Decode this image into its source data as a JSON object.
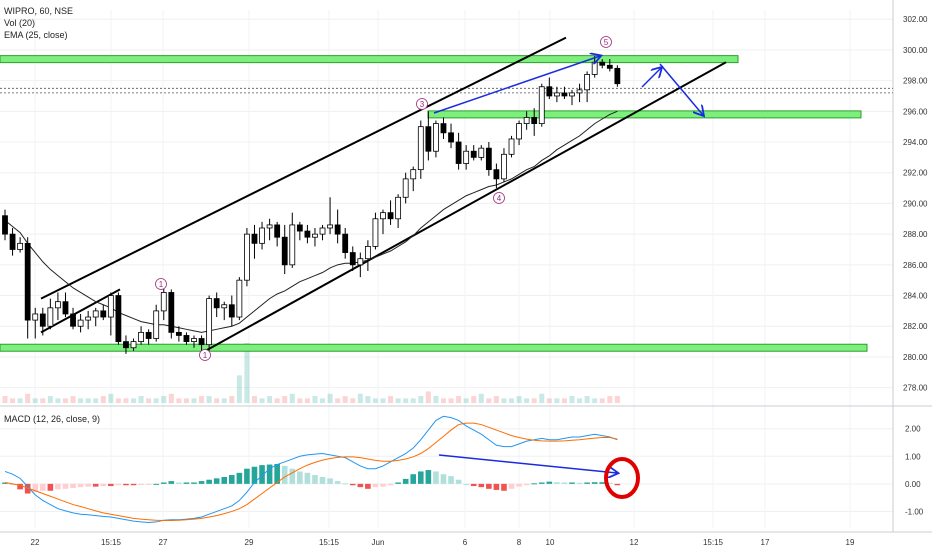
{
  "chart_data": [
    {
      "type": "candlestick",
      "symbol_label": "WIPRO, 60, NSE",
      "volume_label": "Vol (20)",
      "ema_label": "EMA (25, close)",
      "y_ticks": [
        "302.00",
        "300.00",
        "298.00",
        "296.00",
        "294.00",
        "292.00",
        "290.00",
        "288.00",
        "286.00",
        "284.00",
        "282.00",
        "280.00",
        "278.00"
      ],
      "ylim": [
        277,
        302.6
      ],
      "dashed_price_levels": [
        297.5,
        297.2
      ],
      "candles": [
        [
          289.2,
          289.6,
          287.6,
          288.0
        ],
        [
          288.0,
          288.4,
          286.6,
          287.0
        ],
        [
          287.0,
          287.8,
          286.8,
          287.4
        ],
        [
          287.4,
          287.8,
          281.2,
          282.4
        ],
        [
          282.4,
          283.2,
          281.2,
          282.8
        ],
        [
          282.8,
          283.2,
          281.4,
          282.0
        ],
        [
          282.0,
          283.8,
          281.8,
          283.2
        ],
        [
          283.2,
          284.2,
          282.4,
          283.6
        ],
        [
          283.6,
          284.2,
          282.6,
          282.8
        ],
        [
          282.8,
          283.2,
          281.8,
          282.0
        ],
        [
          282.0,
          282.8,
          281.6,
          282.4
        ],
        [
          282.4,
          283.0,
          281.8,
          282.6
        ],
        [
          282.6,
          283.2,
          282.0,
          283.0
        ],
        [
          283.0,
          283.4,
          282.4,
          282.6
        ],
        [
          282.6,
          284.2,
          281.4,
          284.0
        ],
        [
          284.0,
          284.2,
          280.8,
          281.0
        ],
        [
          281.0,
          281.4,
          280.2,
          280.6
        ],
        [
          280.6,
          281.2,
          280.4,
          281.0
        ],
        [
          281.0,
          282.0,
          280.8,
          281.6
        ],
        [
          281.6,
          281.8,
          280.8,
          281.2
        ],
        [
          281.2,
          283.4,
          281.0,
          283.0
        ],
        [
          283.0,
          284.6,
          282.4,
          284.2
        ],
        [
          284.2,
          284.4,
          281.2,
          281.6
        ],
        [
          281.6,
          282.0,
          281.0,
          281.4
        ],
        [
          281.4,
          281.6,
          280.8,
          281.0
        ],
        [
          281.0,
          281.4,
          280.6,
          281.2
        ],
        [
          281.2,
          281.4,
          280.4,
          280.8
        ],
        [
          280.8,
          284.0,
          280.4,
          283.8
        ],
        [
          283.8,
          284.2,
          282.6,
          283.2
        ],
        [
          283.2,
          283.6,
          282.4,
          283.4
        ],
        [
          283.4,
          284.0,
          282.0,
          282.6
        ],
        [
          282.6,
          285.2,
          282.4,
          285.0
        ],
        [
          285.0,
          288.4,
          284.6,
          288.0
        ],
        [
          288.0,
          288.6,
          286.4,
          287.4
        ],
        [
          287.4,
          288.8,
          287.0,
          288.4
        ],
        [
          288.4,
          289.0,
          287.6,
          288.6
        ],
        [
          288.6,
          288.8,
          287.2,
          287.8
        ],
        [
          287.8,
          288.6,
          285.4,
          286.0
        ],
        [
          286.0,
          289.4,
          285.8,
          288.6
        ],
        [
          288.6,
          288.8,
          287.6,
          288.2
        ],
        [
          288.2,
          288.6,
          287.4,
          287.8
        ],
        [
          287.8,
          288.4,
          287.2,
          288.0
        ],
        [
          288.0,
          288.6,
          287.6,
          288.4
        ],
        [
          288.4,
          290.4,
          288.0,
          288.6
        ],
        [
          288.6,
          289.6,
          287.4,
          288.0
        ],
        [
          288.0,
          288.4,
          286.4,
          286.8
        ],
        [
          286.8,
          287.2,
          285.6,
          286.0
        ],
        [
          286.0,
          286.8,
          285.2,
          286.4
        ],
        [
          286.4,
          287.6,
          285.6,
          287.2
        ],
        [
          287.2,
          289.4,
          287.0,
          289.0
        ],
        [
          289.0,
          289.6,
          288.0,
          289.4
        ],
        [
          289.4,
          290.2,
          288.6,
          289.0
        ],
        [
          289.0,
          290.6,
          288.4,
          290.4
        ],
        [
          290.4,
          292.0,
          290.0,
          291.6
        ],
        [
          291.6,
          292.4,
          290.8,
          292.2
        ],
        [
          292.2,
          295.4,
          291.6,
          295.0
        ],
        [
          295.0,
          296.0,
          292.8,
          293.4
        ],
        [
          293.4,
          295.4,
          293.0,
          295.2
        ],
        [
          295.2,
          295.6,
          294.2,
          294.6
        ],
        [
          294.6,
          295.2,
          293.6,
          294.0
        ],
        [
          294.0,
          294.6,
          292.2,
          292.6
        ],
        [
          292.6,
          293.8,
          292.2,
          293.4
        ],
        [
          293.4,
          293.8,
          292.8,
          293.0
        ],
        [
          293.0,
          293.8,
          292.8,
          293.6
        ],
        [
          293.6,
          294.0,
          291.8,
          292.2
        ],
        [
          292.2,
          292.6,
          291.0,
          291.6
        ],
        [
          291.6,
          293.6,
          291.4,
          293.2
        ],
        [
          293.2,
          294.4,
          293.0,
          294.2
        ],
        [
          294.2,
          295.4,
          293.8,
          295.2
        ],
        [
          295.2,
          296.0,
          294.8,
          295.6
        ],
        [
          295.6,
          296.2,
          294.4,
          295.2
        ],
        [
          295.2,
          297.8,
          295.0,
          297.6
        ],
        [
          297.6,
          298.2,
          296.8,
          297.0
        ],
        [
          297.0,
          297.6,
          296.6,
          297.2
        ],
        [
          297.2,
          297.6,
          296.8,
          297.0
        ],
        [
          297.0,
          297.4,
          296.4,
          297.2
        ],
        [
          297.2,
          297.8,
          296.6,
          297.4
        ],
        [
          297.4,
          298.6,
          296.6,
          298.4
        ],
        [
          298.4,
          299.6,
          298.2,
          299.2
        ],
        [
          299.2,
          299.4,
          298.8,
          299.0
        ],
        [
          299.0,
          299.4,
          298.6,
          298.8
        ],
        [
          298.8,
          299.0,
          297.6,
          297.8
        ]
      ],
      "ema_values": [
        288.9,
        288.5,
        288.1,
        287.4,
        286.8,
        286.2,
        285.7,
        285.3,
        284.9,
        284.5,
        284.2,
        283.9,
        283.6,
        283.4,
        283.2,
        282.9,
        282.7,
        282.5,
        282.3,
        282.2,
        282.1,
        282.1,
        282.0,
        281.9,
        281.8,
        281.7,
        281.6,
        281.7,
        281.8,
        281.9,
        282.0,
        282.2,
        282.6,
        283.0,
        283.4,
        283.8,
        284.1,
        284.3,
        284.6,
        284.9,
        285.1,
        285.3,
        285.5,
        285.8,
        286.0,
        286.1,
        286.1,
        286.2,
        286.3,
        286.5,
        286.7,
        286.9,
        287.2,
        287.5,
        287.9,
        288.4,
        288.8,
        289.2,
        289.6,
        289.9,
        290.2,
        290.5,
        290.7,
        290.9,
        291.1,
        291.2,
        291.4,
        291.6,
        291.9,
        292.2,
        292.4,
        292.8,
        293.1,
        293.5,
        293.8,
        294.1,
        294.4,
        294.8,
        295.2,
        295.5,
        295.8,
        296.0
      ],
      "volume_values": [
        3,
        2,
        2,
        4,
        2,
        2,
        3,
        2,
        2,
        3,
        2,
        2,
        2,
        3,
        4,
        2,
        2,
        2,
        3,
        2,
        2,
        3,
        4,
        2,
        2,
        2,
        3,
        3,
        2,
        2,
        3,
        12,
        26,
        3,
        2,
        3,
        2,
        3,
        4,
        2,
        2,
        3,
        2,
        4,
        2,
        3,
        2,
        4,
        3,
        2,
        2,
        3,
        2,
        2,
        2,
        3,
        5,
        3,
        2,
        2,
        3,
        2,
        3,
        4,
        2,
        3,
        2,
        2,
        3,
        2,
        2,
        4,
        2,
        2,
        2,
        3,
        2,
        3,
        2,
        2,
        3,
        3
      ],
      "support_resistance_zones": [
        299.4,
        295.8,
        280.6
      ],
      "channel_upper": [
        [
          283.8,
          41
        ],
        [
          300.8,
          566
        ]
      ],
      "channel_lower": [
        [
          280.2,
          200
        ],
        [
          299.2,
          726
        ]
      ],
      "wave_labels": [
        "1",
        "1",
        "3",
        "4",
        "5"
      ],
      "x_tick_labels": [
        "22",
        "15:15",
        "27",
        "29",
        "15:15",
        "Jun",
        "6",
        "8",
        "10",
        "12",
        "15:15",
        "17",
        "19"
      ]
    },
    {
      "type": "line",
      "title": "MACD (12, 26, close, 9)",
      "y_ticks": [
        "2.00",
        "1.00",
        "0.00",
        "-1.00"
      ],
      "ylim": [
        -1.6,
        2.75
      ],
      "macd_line": [
        0.45,
        0.35,
        0.2,
        -0.1,
        -0.4,
        -0.6,
        -0.75,
        -0.9,
        -0.98,
        -1.05,
        -1.1,
        -1.12,
        -1.15,
        -1.18,
        -1.2,
        -1.25,
        -1.3,
        -1.35,
        -1.38,
        -1.4,
        -1.38,
        -1.32,
        -1.3,
        -1.3,
        -1.28,
        -1.25,
        -1.2,
        -1.1,
        -1.0,
        -0.9,
        -0.8,
        -0.6,
        -0.3,
        0.05,
        0.3,
        0.55,
        0.7,
        0.8,
        0.9,
        1.0,
        1.05,
        1.08,
        1.1,
        1.05,
        1.0,
        0.95,
        0.8,
        0.65,
        0.55,
        0.55,
        0.65,
        0.8,
        0.95,
        1.1,
        1.3,
        1.6,
        1.95,
        2.3,
        2.45,
        2.4,
        2.3,
        2.1,
        1.95,
        1.8,
        1.6,
        1.4,
        1.35,
        1.35,
        1.45,
        1.55,
        1.6,
        1.65,
        1.6,
        1.6,
        1.65,
        1.7,
        1.7,
        1.75,
        1.8,
        1.75,
        1.7,
        1.6
      ],
      "signal_line": [
        0.05,
        0.0,
        -0.05,
        -0.15,
        -0.25,
        -0.35,
        -0.45,
        -0.55,
        -0.65,
        -0.75,
        -0.82,
        -0.9,
        -0.98,
        -1.05,
        -1.1,
        -1.15,
        -1.2,
        -1.25,
        -1.28,
        -1.3,
        -1.32,
        -1.33,
        -1.33,
        -1.32,
        -1.3,
        -1.28,
        -1.25,
        -1.2,
        -1.15,
        -1.08,
        -1.0,
        -0.9,
        -0.75,
        -0.55,
        -0.35,
        -0.15,
        0.05,
        0.25,
        0.4,
        0.55,
        0.68,
        0.78,
        0.86,
        0.92,
        0.96,
        0.98,
        0.98,
        0.95,
        0.9,
        0.85,
        0.82,
        0.82,
        0.85,
        0.9,
        0.98,
        1.1,
        1.28,
        1.5,
        1.72,
        1.95,
        2.15,
        2.2,
        2.2,
        2.15,
        2.05,
        1.95,
        1.85,
        1.75,
        1.68,
        1.62,
        1.58,
        1.56,
        1.55,
        1.55,
        1.56,
        1.58,
        1.6,
        1.63,
        1.66,
        1.68,
        1.68,
        1.62
      ],
      "histogram": [
        0.05,
        0.0,
        -0.2,
        -0.35,
        -0.3,
        -0.25,
        -0.25,
        -0.2,
        -0.18,
        -0.15,
        -0.12,
        -0.1,
        -0.1,
        -0.08,
        -0.08,
        -0.05,
        -0.05,
        -0.05,
        -0.04,
        -0.03,
        0.0,
        0.05,
        0.1,
        0.05,
        0.05,
        0.05,
        0.1,
        0.15,
        0.2,
        0.25,
        0.32,
        0.4,
        0.55,
        0.62,
        0.68,
        0.7,
        0.72,
        0.65,
        0.55,
        0.45,
        0.4,
        0.32,
        0.25,
        0.2,
        0.1,
        0.02,
        -0.05,
        -0.12,
        -0.18,
        -0.12,
        -0.1,
        -0.05,
        0.05,
        0.18,
        0.35,
        0.45,
        0.5,
        0.45,
        0.35,
        0.28,
        0.15,
        0.0,
        -0.08,
        -0.12,
        -0.18,
        -0.22,
        -0.25,
        -0.18,
        -0.1,
        -0.05,
        0.02,
        0.05,
        0.08,
        0.06,
        0.05,
        0.05,
        0.04,
        0.05,
        0.06,
        0.06,
        0.04,
        -0.05
      ]
    }
  ]
}
